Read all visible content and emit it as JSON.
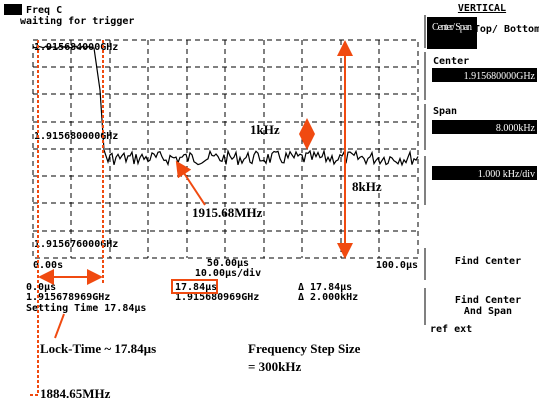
{
  "screen": {
    "title": "Freq C",
    "status": "waiting for trigger",
    "y_labels": [
      "1.915684000GHz",
      "1.915680000GHz",
      "1.915676000GHz"
    ],
    "x_labels": [
      "0.00s",
      "50.00µs",
      "100.0µs"
    ],
    "x_scale": "10.00µs/div",
    "readouts": [
      "0.0µs",
      "1.915678969GHz",
      "17.84µs",
      "1.915680969GHz",
      "Δ 17.84µs",
      "Δ 2.000kHz"
    ],
    "settling": "Setting Time 17.84µs"
  },
  "panel": {
    "title": "VERTICAL",
    "buttons": [
      "Center/ Span",
      "Top/ Bottom"
    ],
    "center_label": "Center",
    "center_value": "1.915680000GHz",
    "span_label": "Span",
    "span_value": "8.000kHz",
    "per_div": "1.000 kHz/div",
    "find_center": "Find Center",
    "find_center_span": [
      "Find Center",
      "And Span"
    ],
    "ref": "ref ext"
  },
  "annotations": {
    "small_span": "1kHz",
    "full_span": "8kHz",
    "center_freq": "1915.68MHz",
    "lock_time": "Lock-Time ~ 17.84µs",
    "step": [
      "Frequency Step Size",
      "= 300kHz"
    ],
    "start_freq": "1884.65MHz"
  }
}
